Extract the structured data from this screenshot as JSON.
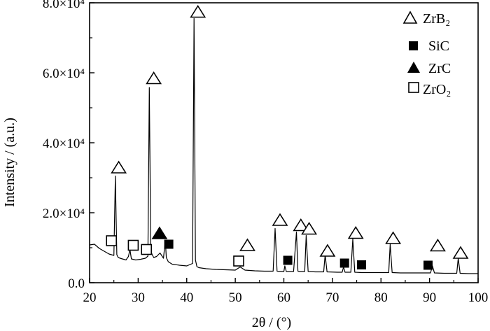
{
  "chart_data": {
    "type": "line",
    "xlabel": "2θ / (°)",
    "ylabel": "Intensity / (a.u.)",
    "xlim": [
      20,
      100
    ],
    "ylim": [
      0,
      80000
    ],
    "x_ticks": [
      "20",
      "30",
      "40",
      "50",
      "60",
      "70",
      "80",
      "90",
      "100"
    ],
    "y_ticks": [
      "0.0",
      "2.0×10⁴",
      "4.0×10⁴",
      "6.0×10⁴",
      "8.0×10⁴"
    ],
    "grid": false,
    "legend_placement": "top-right",
    "legend": [
      {
        "symbol": "open-triangle",
        "label": "ZrB₂"
      },
      {
        "symbol": "filled-square",
        "label": "SiC"
      },
      {
        "symbol": "filled-triangle",
        "label": "ZrC"
      },
      {
        "symbol": "open-square",
        "label": "ZrO₂"
      }
    ],
    "series": [
      {
        "x": [
          20.0,
          21.0,
          22.0,
          23.0,
          24.0,
          24.5,
          25.0,
          25.3,
          25.6,
          25.9,
          26.5,
          27.5,
          28.0,
          28.3,
          28.6,
          29.5,
          30.5,
          31.5,
          32.0,
          32.3,
          32.6,
          32.9,
          33.2,
          33.8,
          34.5,
          35.2,
          35.6,
          35.8,
          36.2,
          37.0,
          38.5,
          40.0,
          41.2,
          41.5,
          41.8,
          42.1,
          42.5,
          44.0,
          46.0,
          48.0,
          50.0,
          51.0,
          52.0,
          54.0,
          56.0,
          57.8,
          58.2,
          58.6,
          60.0,
          60.2,
          60.5,
          62.0,
          62.6,
          62.9,
          63.3,
          64.3,
          64.6,
          65.0,
          66.5,
          68.2,
          68.5,
          68.9,
          71.0,
          72.0,
          72.3,
          72.6,
          73.8,
          74.2,
          74.6,
          76.0,
          78.0,
          80.0,
          81.6,
          81.9,
          82.3,
          84.0,
          86.0,
          88.0,
          90.2,
          90.6,
          91.0,
          93.0,
          95.6,
          95.9,
          96.3,
          98.0,
          100.0
        ],
        "y": [
          10800,
          11000,
          9800,
          9000,
          8200,
          8000,
          7800,
          30500,
          8000,
          7200,
          6900,
          6500,
          7500,
          9500,
          6800,
          6500,
          6700,
          7000,
          7600,
          55800,
          9000,
          8000,
          7200,
          7500,
          8500,
          7000,
          12000,
          7200,
          6000,
          5300,
          5000,
          4800,
          5500,
          75500,
          6500,
          4600,
          4300,
          4000,
          3800,
          3700,
          3600,
          4500,
          3600,
          3400,
          3300,
          3300,
          15500,
          3300,
          3200,
          4800,
          3200,
          3200,
          14500,
          3300,
          3200,
          3200,
          13500,
          3200,
          3100,
          3100,
          8000,
          3100,
          3000,
          3000,
          4500,
          3000,
          3000,
          12500,
          3000,
          2900,
          2900,
          2900,
          2900,
          11000,
          2900,
          2800,
          2800,
          2800,
          2800,
          4800,
          2800,
          2700,
          2700,
          7000,
          2700,
          2600,
          2600
        ]
      }
    ],
    "phase_markers": [
      {
        "phase": "ZrB2",
        "symbol": "open-triangle",
        "x": 26.0,
        "y": 33000
      },
      {
        "phase": "ZrB2",
        "symbol": "open-triangle",
        "x": 33.2,
        "y": 58500
      },
      {
        "phase": "ZrB2",
        "symbol": "open-triangle",
        "x": 42.3,
        "y": 77500
      },
      {
        "phase": "ZrB2",
        "symbol": "open-triangle",
        "x": 52.5,
        "y": 10800
      },
      {
        "phase": "ZrB2",
        "symbol": "open-triangle",
        "x": 59.2,
        "y": 18000
      },
      {
        "phase": "ZrB2",
        "symbol": "open-triangle",
        "x": 63.5,
        "y": 16500
      },
      {
        "phase": "ZrB2",
        "symbol": "open-triangle",
        "x": 65.2,
        "y": 15500
      },
      {
        "phase": "ZrB2",
        "symbol": "open-triangle",
        "x": 69.0,
        "y": 9200
      },
      {
        "phase": "ZrB2",
        "symbol": "open-triangle",
        "x": 74.8,
        "y": 14300
      },
      {
        "phase": "ZrB2",
        "symbol": "open-triangle",
        "x": 82.5,
        "y": 12800
      },
      {
        "phase": "ZrB2",
        "symbol": "open-triangle",
        "x": 91.7,
        "y": 10700
      },
      {
        "phase": "ZrB2",
        "symbol": "open-triangle",
        "x": 96.4,
        "y": 8600
      },
      {
        "phase": "SiC",
        "symbol": "filled-square",
        "x": 36.3,
        "y": 11000
      },
      {
        "phase": "SiC",
        "symbol": "filled-square",
        "x": 60.8,
        "y": 6400
      },
      {
        "phase": "SiC",
        "symbol": "filled-square",
        "x": 72.5,
        "y": 5600
      },
      {
        "phase": "SiC",
        "symbol": "filled-square",
        "x": 76.0,
        "y": 5100
      },
      {
        "phase": "SiC",
        "symbol": "filled-square",
        "x": 89.7,
        "y": 5000
      },
      {
        "phase": "ZrC",
        "symbol": "filled-triangle",
        "x": 34.4,
        "y": 14200
      },
      {
        "phase": "ZrO2",
        "symbol": "open-square",
        "x": 24.5,
        "y": 12000
      },
      {
        "phase": "ZrO2",
        "symbol": "open-square",
        "x": 29.0,
        "y": 10700
      },
      {
        "phase": "ZrO2",
        "symbol": "open-square",
        "x": 31.7,
        "y": 9500
      },
      {
        "phase": "ZrO2",
        "symbol": "open-square",
        "x": 50.7,
        "y": 6200
      }
    ]
  }
}
